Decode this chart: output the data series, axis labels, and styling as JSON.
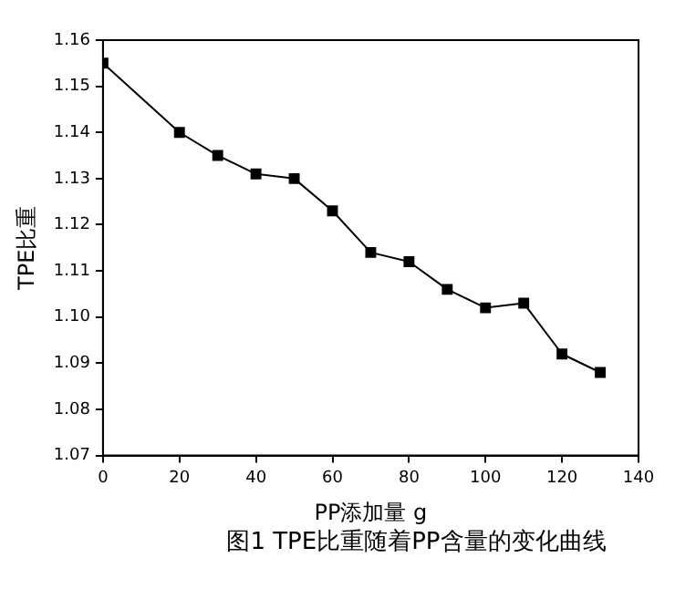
{
  "chart_data": {
    "type": "line",
    "xlabel": "PP添加量 g",
    "ylabel": "TPE比重",
    "annotations": [
      "图1 TPE比重随着PP含量的变化曲线"
    ],
    "x": [
      0,
      20,
      30,
      40,
      50,
      60,
      70,
      80,
      90,
      100,
      110,
      120,
      130
    ],
    "series": [
      {
        "color": "#000000",
        "values": [
          1.155,
          1.14,
          1.135,
          1.131,
          1.13,
          1.123,
          1.114,
          1.112,
          1.106,
          1.102,
          1.103,
          1.092,
          1.088
        ]
      }
    ],
    "xlim": [
      0,
      140
    ],
    "xticks": [
      0,
      20,
      40,
      60,
      80,
      100,
      120,
      140
    ],
    "ylim": [
      1.07,
      1.16
    ],
    "yticks": [
      1.07,
      1.08,
      1.09,
      {
        "value": 1.1,
        "label": "1.10"
      },
      1.11,
      1.12,
      1.13,
      1.14,
      1.15,
      1.16
    ],
    "grid": false,
    "legend": false,
    "marker": "square",
    "line_style": "solid"
  }
}
